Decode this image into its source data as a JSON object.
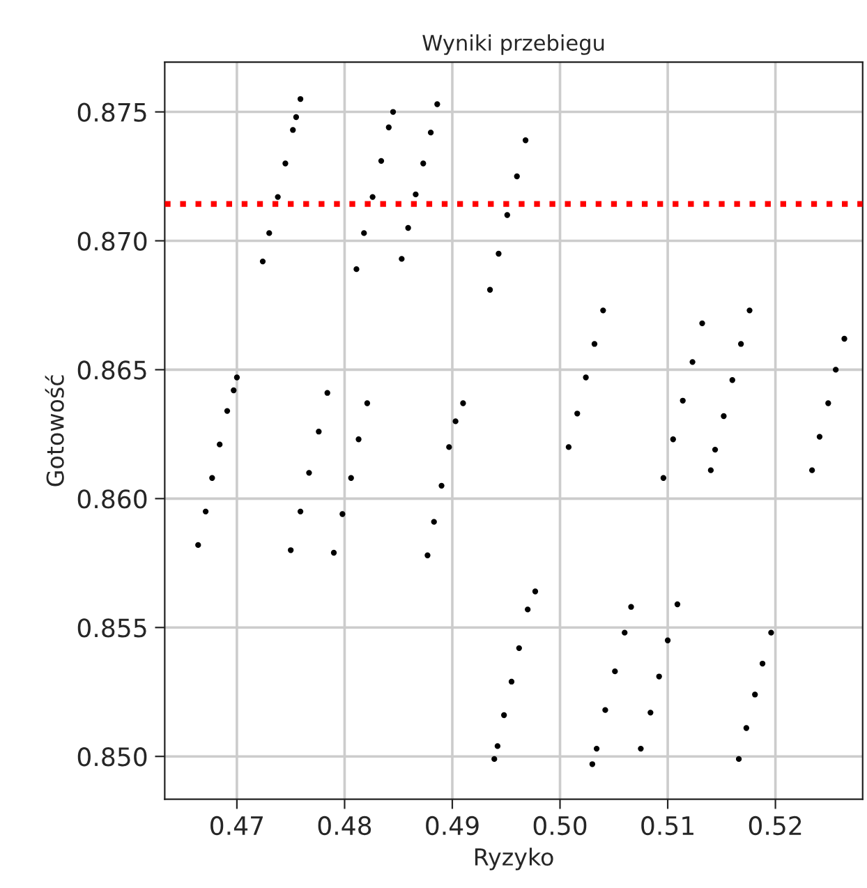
{
  "chart_data": {
    "type": "scatter",
    "title": "Wyniki przebiegu",
    "xlabel": "Ryzyko",
    "ylabel": "Gotowość",
    "xlim": [
      0.4633,
      0.5281
    ],
    "ylim": [
      0.84834,
      0.87693
    ],
    "xticks": [
      {
        "value": 0.47,
        "label": "0.47"
      },
      {
        "value": 0.48,
        "label": "0.48"
      },
      {
        "value": 0.49,
        "label": "0.49"
      },
      {
        "value": 0.5,
        "label": "0.50"
      },
      {
        "value": 0.51,
        "label": "0.51"
      },
      {
        "value": 0.52,
        "label": "0.52"
      }
    ],
    "yticks": [
      {
        "value": 0.85,
        "label": "0.850"
      },
      {
        "value": 0.855,
        "label": "0.855"
      },
      {
        "value": 0.86,
        "label": "0.860"
      },
      {
        "value": 0.865,
        "label": "0.865"
      },
      {
        "value": 0.87,
        "label": "0.870"
      },
      {
        "value": 0.875,
        "label": "0.875"
      }
    ],
    "grid": true,
    "marker": "circle",
    "ref_lines": [
      {
        "axis": "y",
        "value": 0.87143,
        "color": "#ff0000",
        "line_style": "dotted"
      }
    ],
    "series": [
      {
        "color": "#000000",
        "x": [
          0.4724,
          0.473,
          0.4738,
          0.4745,
          0.4752,
          0.4755,
          0.4759,
          0.4811,
          0.4818,
          0.4826,
          0.4834,
          0.4841,
          0.4845,
          0.4853,
          0.4859,
          0.4866,
          0.4873,
          0.488,
          0.4886,
          0.4935,
          0.4943,
          0.4951,
          0.496,
          0.4968,
          0.5008,
          0.5016,
          0.5024,
          0.5032,
          0.504,
          0.5096,
          0.5105,
          0.5114,
          0.5123,
          0.5132,
          0.514,
          0.5144,
          0.5152,
          0.516,
          0.5168,
          0.5176,
          0.5234,
          0.5241,
          0.5249,
          0.5256,
          0.5264,
          0.4664,
          0.4671,
          0.4677,
          0.4684,
          0.4691,
          0.4697,
          0.47,
          0.475,
          0.4759,
          0.4767,
          0.4776,
          0.4784,
          0.479,
          0.4798,
          0.4806,
          0.4813,
          0.4821,
          0.4877,
          0.4883,
          0.489,
          0.4897,
          0.4903,
          0.491,
          0.4939,
          0.4942,
          0.4948,
          0.4955,
          0.4962,
          0.497,
          0.4977,
          0.503,
          0.5034,
          0.5042,
          0.5051,
          0.506,
          0.5066,
          0.5075,
          0.5084,
          0.5092,
          0.51,
          0.5109,
          0.5166,
          0.5173,
          0.5181,
          0.5188,
          0.5196
        ],
        "values": [
          0.8692,
          0.8703,
          0.8717,
          0.873,
          0.8743,
          0.8748,
          0.8755,
          0.8689,
          0.8703,
          0.8717,
          0.8731,
          0.8744,
          0.875,
          0.8693,
          0.8705,
          0.8718,
          0.873,
          0.8742,
          0.8753,
          0.8681,
          0.8695,
          0.871,
          0.8725,
          0.8739,
          0.862,
          0.8633,
          0.8647,
          0.866,
          0.8673,
          0.8608,
          0.8623,
          0.8638,
          0.8653,
          0.8668,
          0.8611,
          0.8619,
          0.8632,
          0.8646,
          0.866,
          0.8673,
          0.8611,
          0.8624,
          0.8637,
          0.865,
          0.8662,
          0.8582,
          0.8595,
          0.8608,
          0.8621,
          0.8634,
          0.8642,
          0.8647,
          0.858,
          0.8595,
          0.861,
          0.8626,
          0.8641,
          0.8579,
          0.8594,
          0.8608,
          0.8623,
          0.8637,
          0.8578,
          0.8591,
          0.8605,
          0.862,
          0.863,
          0.8637,
          0.8499,
          0.8504,
          0.8516,
          0.8529,
          0.8542,
          0.8557,
          0.8564,
          0.8497,
          0.8503,
          0.8518,
          0.8533,
          0.8548,
          0.8558,
          0.8503,
          0.8517,
          0.8531,
          0.8545,
          0.8559,
          0.8499,
          0.8511,
          0.8524,
          0.8536,
          0.8548
        ]
      }
    ]
  }
}
